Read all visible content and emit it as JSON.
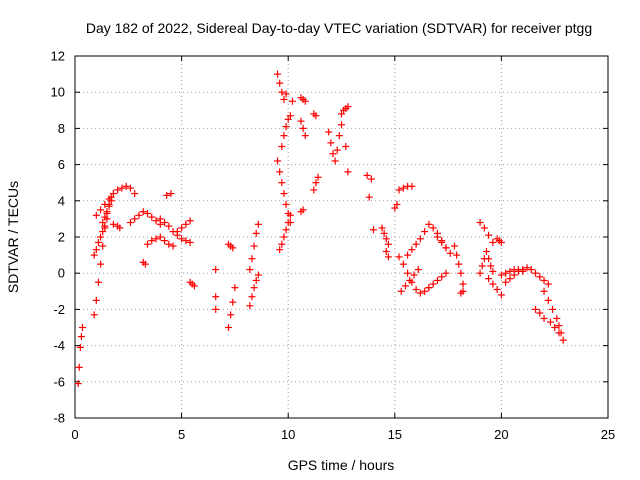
{
  "chart_data": {
    "type": "scatter",
    "title": "Day 182 of 2022, Sidereal Day-to-day VTEC variation (SDTVAR) for receiver ptgg",
    "xlabel": "GPS time / hours",
    "ylabel": "SDTVAR / TECUs",
    "xlim": [
      0,
      25
    ],
    "ylim": [
      -8,
      12
    ],
    "xticks": [
      "0",
      "5",
      "10",
      "15",
      "20",
      "25"
    ],
    "yticks": [
      "-8",
      "-6",
      "-4",
      "-2",
      "0",
      "2",
      "4",
      "6",
      "8",
      "10",
      "12"
    ],
    "grid": true,
    "marker": "plus",
    "color": "#ff0000",
    "segments": [
      {
        "x": [
          0.15,
          0.2,
          0.25,
          0.3,
          0.35
        ],
        "y": [
          -6.1,
          -5.2,
          -4.1,
          -3.5,
          -3.0
        ]
      },
      {
        "x": [
          0.9,
          1.0,
          1.1,
          1.2,
          1.3,
          1.4,
          1.5,
          1.6,
          1.7
        ],
        "y": [
          -2.3,
          -1.5,
          -0.5,
          0.5,
          1.5,
          2.5,
          3.3,
          3.8,
          4.2
        ]
      },
      {
        "x": [
          0.9,
          1.0,
          1.1,
          1.2,
          1.3,
          1.4,
          1.5
        ],
        "y": [
          1.0,
          1.3,
          1.7,
          2.0,
          2.3,
          2.6,
          3.0
        ]
      },
      {
        "x": [
          1.0,
          1.2,
          1.4,
          1.6,
          1.8,
          2.0,
          2.2,
          2.4,
          2.6,
          2.8
        ],
        "y": [
          3.2,
          3.5,
          3.8,
          4.1,
          4.4,
          4.6,
          4.7,
          4.8,
          4.7,
          4.4
        ]
      },
      {
        "x": [
          1.3,
          1.4,
          1.5,
          1.6,
          1.7
        ],
        "y": [
          2.8,
          3.1,
          3.4,
          3.7,
          4.0
        ]
      },
      {
        "x": [
          1.8,
          2.0,
          2.1
        ],
        "y": [
          2.7,
          2.6,
          2.5
        ]
      },
      {
        "x": [
          2.6,
          2.8,
          3.0,
          3.2,
          3.4,
          3.6,
          3.8,
          4.0
        ],
        "y": [
          2.8,
          3.0,
          3.2,
          3.4,
          3.3,
          3.1,
          2.9,
          2.7
        ]
      },
      {
        "x": [
          3.2,
          3.3
        ],
        "y": [
          0.6,
          0.5
        ]
      },
      {
        "x": [
          3.4,
          3.6,
          3.8,
          4.0,
          4.2,
          4.4,
          4.6
        ],
        "y": [
          1.6,
          1.8,
          1.9,
          2.0,
          1.8,
          1.6,
          1.5
        ]
      },
      {
        "x": [
          4.0,
          4.2,
          4.4,
          4.6,
          4.8,
          5.0,
          5.2,
          5.4
        ],
        "y": [
          3.0,
          2.8,
          2.6,
          2.3,
          2.1,
          1.9,
          1.8,
          1.7
        ]
      },
      {
        "x": [
          4.3,
          4.5
        ],
        "y": [
          4.3,
          4.4
        ]
      },
      {
        "x": [
          4.8,
          5.0,
          5.2,
          5.4
        ],
        "y": [
          2.3,
          2.5,
          2.7,
          2.9
        ]
      },
      {
        "x": [
          5.4,
          5.5,
          5.6
        ],
        "y": [
          -0.5,
          -0.6,
          -0.7
        ]
      },
      {
        "x": [
          6.6,
          6.6,
          6.6
        ],
        "y": [
          0.2,
          -1.3,
          -2.0
        ]
      },
      {
        "x": [
          7.2,
          7.3,
          7.4,
          7.5
        ],
        "y": [
          -3.0,
          -2.3,
          -1.6,
          -0.8
        ]
      },
      {
        "x": [
          7.2,
          7.3,
          7.4
        ],
        "y": [
          1.6,
          1.5,
          1.4
        ]
      },
      {
        "x": [
          8.2,
          8.3,
          8.4,
          8.5,
          8.6
        ],
        "y": [
          -1.8,
          -1.3,
          -0.8,
          -0.4,
          -0.1
        ]
      },
      {
        "x": [
          8.2,
          8.3,
          8.4,
          8.5,
          8.6
        ],
        "y": [
          0.2,
          0.8,
          1.5,
          2.2,
          2.7
        ]
      },
      {
        "x": [
          9.5,
          9.6,
          9.7,
          9.8,
          9.9
        ],
        "y": [
          11.0,
          10.5,
          10.0,
          9.6,
          9.9
        ]
      },
      {
        "x": [
          9.5,
          9.6,
          9.7,
          9.8,
          9.9,
          10.0,
          10.1
        ],
        "y": [
          6.2,
          5.6,
          5.0,
          4.4,
          3.8,
          3.3,
          2.8
        ]
      },
      {
        "x": [
          9.6,
          9.7,
          9.8,
          9.9,
          10.0,
          10.1
        ],
        "y": [
          1.3,
          1.6,
          2.0,
          2.4,
          2.8,
          3.2
        ]
      },
      {
        "x": [
          9.7,
          9.8,
          9.9,
          10.0,
          10.1,
          10.2
        ],
        "y": [
          7.0,
          7.6,
          8.1,
          8.5,
          8.7,
          9.5
        ]
      },
      {
        "x": [
          10.6,
          10.7,
          10.8
        ],
        "y": [
          9.7,
          9.6,
          9.5
        ]
      },
      {
        "x": [
          10.6,
          10.7,
          10.8
        ],
        "y": [
          8.4,
          8.0,
          7.6
        ]
      },
      {
        "x": [
          10.6,
          10.7
        ],
        "y": [
          3.4,
          3.5
        ]
      },
      {
        "x": [
          11.2,
          11.3
        ],
        "y": [
          8.8,
          8.7
        ]
      },
      {
        "x": [
          11.2,
          11.3,
          11.4
        ],
        "y": [
          4.6,
          5.0,
          5.3
        ]
      },
      {
        "x": [
          11.9,
          12.0,
          12.1,
          12.2,
          12.3,
          12.4,
          12.5
        ],
        "y": [
          7.8,
          7.2,
          6.6,
          6.2,
          6.8,
          7.6,
          8.2
        ]
      },
      {
        "x": [
          12.5,
          12.6,
          12.7,
          12.8
        ],
        "y": [
          8.8,
          9.0,
          9.1,
          9.2
        ]
      },
      {
        "x": [
          12.7
        ],
        "y": [
          7.0
        ]
      },
      {
        "x": [
          12.8
        ],
        "y": [
          5.6
        ]
      },
      {
        "x": [
          13.7,
          13.9
        ],
        "y": [
          5.4,
          5.2
        ]
      },
      {
        "x": [
          13.8,
          14.0
        ],
        "y": [
          4.2,
          2.4
        ]
      },
      {
        "x": [
          14.4,
          14.5,
          14.6,
          14.7
        ],
        "y": [
          2.5,
          2.2,
          1.9,
          1.6
        ]
      },
      {
        "x": [
          14.6,
          14.7
        ],
        "y": [
          1.2,
          0.9
        ]
      },
      {
        "x": [
          15.0,
          15.1
        ],
        "y": [
          3.6,
          3.8
        ]
      },
      {
        "x": [
          15.2,
          15.4,
          15.6,
          15.8
        ],
        "y": [
          4.6,
          4.7,
          4.8,
          4.8
        ]
      },
      {
        "x": [
          15.2,
          15.4,
          15.6,
          15.8,
          16.0,
          16.2,
          16.4,
          16.6
        ],
        "y": [
          0.9,
          0.5,
          0.0,
          -0.5,
          -0.9,
          -1.1,
          -1.0,
          -0.8
        ]
      },
      {
        "x": [
          15.3,
          15.5,
          15.7,
          15.9,
          16.1
        ],
        "y": [
          -1.0,
          -0.7,
          -0.4,
          -0.1,
          0.2
        ]
      },
      {
        "x": [
          15.6,
          15.8,
          16.0,
          16.2,
          16.4,
          16.6,
          16.8,
          17.0,
          17.2,
          17.4
        ],
        "y": [
          1.0,
          1.3,
          1.6,
          1.9,
          2.3,
          2.7,
          2.5,
          2.2,
          1.8,
          1.4
        ]
      },
      {
        "x": [
          16.6,
          16.8,
          17.0,
          17.2,
          17.4
        ],
        "y": [
          -0.8,
          -0.6,
          -0.4,
          -0.2,
          0.0
        ]
      },
      {
        "x": [
          17.0,
          17.2,
          17.4,
          17.6
        ],
        "y": [
          2.0,
          1.7,
          1.4,
          1.1
        ]
      },
      {
        "x": [
          17.8,
          17.9,
          18.0,
          18.1,
          18.2
        ],
        "y": [
          1.5,
          1.0,
          0.5,
          0.0,
          -0.6
        ]
      },
      {
        "x": [
          18.1,
          18.2
        ],
        "y": [
          -1.1,
          -1.0
        ]
      },
      {
        "x": [
          19.0,
          19.2,
          19.4,
          19.6
        ],
        "y": [
          2.8,
          2.5,
          2.1,
          1.7
        ]
      },
      {
        "x": [
          19.0,
          19.1,
          19.2,
          19.3,
          19.4,
          19.5,
          19.6
        ],
        "y": [
          0.0,
          0.4,
          0.8,
          1.2,
          0.8,
          0.4,
          0.1
        ]
      },
      {
        "x": [
          19.4,
          19.6,
          19.8,
          20.0
        ],
        "y": [
          -0.3,
          -0.6,
          -0.9,
          -1.2
        ]
      },
      {
        "x": [
          19.8,
          19.9,
          20.0
        ],
        "y": [
          1.9,
          1.8,
          1.7
        ]
      },
      {
        "x": [
          20.0,
          20.2,
          20.4,
          20.6,
          20.8,
          21.0
        ],
        "y": [
          -0.1,
          0.0,
          0.1,
          0.2,
          0.2,
          0.1
        ]
      },
      {
        "x": [
          20.2,
          20.4,
          20.6,
          20.8,
          21.0,
          21.2,
          21.4,
          21.6,
          21.8,
          22.0,
          22.2
        ],
        "y": [
          -0.5,
          -0.3,
          -0.1,
          0.1,
          0.2,
          0.3,
          0.2,
          0.0,
          -0.2,
          -0.4,
          -0.6
        ]
      },
      {
        "x": [
          21.6,
          21.8,
          22.0
        ],
        "y": [
          -2.0,
          -2.2,
          -2.5
        ]
      },
      {
        "x": [
          22.0,
          22.2,
          22.4,
          22.6,
          22.7,
          22.8,
          22.9
        ],
        "y": [
          -1.0,
          -1.5,
          -2.0,
          -2.5,
          -2.9,
          -3.3,
          -3.7
        ]
      },
      {
        "x": [
          22.3,
          22.5,
          22.7
        ],
        "y": [
          -2.7,
          -3.0,
          -3.3
        ]
      }
    ]
  }
}
